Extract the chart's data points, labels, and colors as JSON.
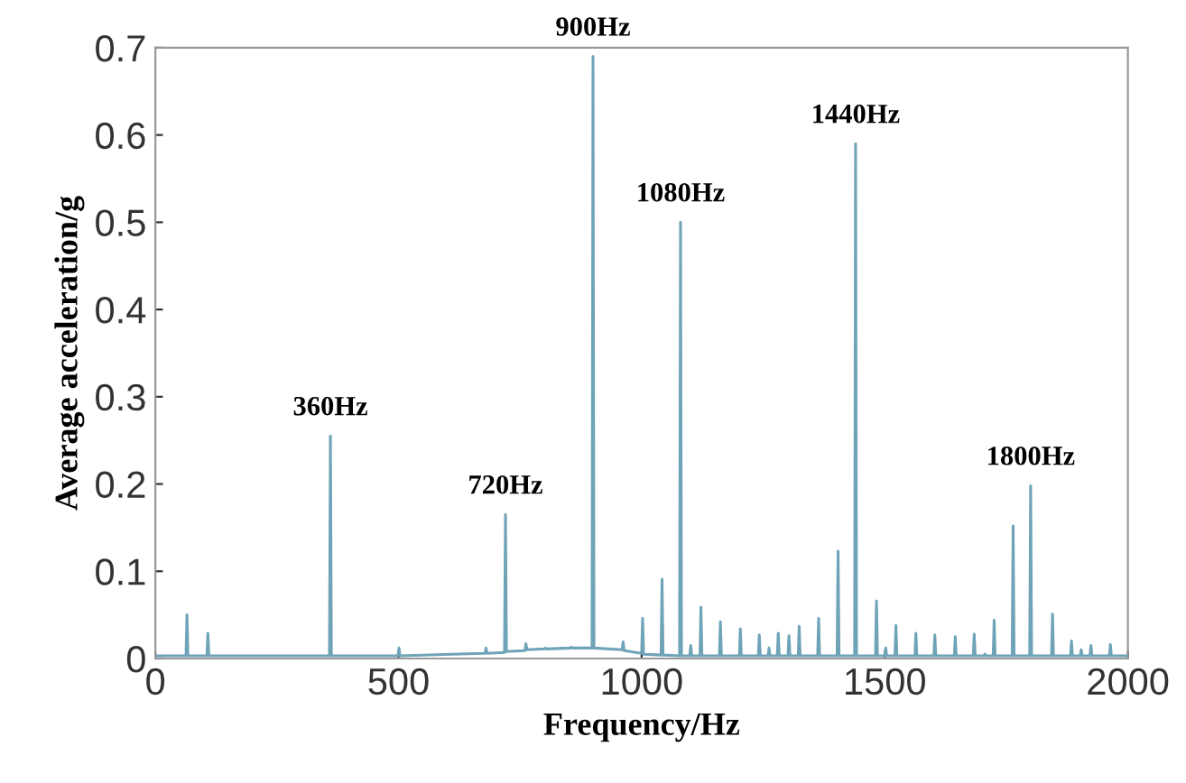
{
  "chart_data": {
    "type": "line",
    "xlabel": "Frequency/Hz",
    "ylabel": "Average acceleration/g",
    "x": [
      0,
      63,
      65,
      67,
      106,
      108,
      110,
      358,
      360,
      362,
      499,
      501,
      503,
      678,
      680,
      682,
      718,
      720,
      722,
      760,
      762,
      764,
      800,
      802,
      804,
      853,
      855,
      857,
      898,
      900,
      902,
      960,
      962,
      964,
      1000,
      1002,
      1004,
      1040,
      1042,
      1044,
      1078,
      1080,
      1082,
      1099,
      1101,
      1103,
      1120,
      1122,
      1124,
      1160,
      1162,
      1164,
      1201,
      1203,
      1205,
      1240,
      1242,
      1244,
      1260,
      1262,
      1264,
      1279,
      1281,
      1283,
      1301,
      1303,
      1305,
      1322,
      1324,
      1326,
      1362,
      1364,
      1366,
      1402,
      1404,
      1406,
      1438,
      1440,
      1442,
      1481,
      1483,
      1485,
      1500,
      1502,
      1504,
      1521,
      1523,
      1525,
      1562,
      1564,
      1566,
      1601,
      1603,
      1605,
      1643,
      1645,
      1647,
      1682,
      1684,
      1686,
      1704,
      1706,
      1708,
      1723,
      1725,
      1727,
      1762,
      1764,
      1766,
      1798,
      1800,
      1802,
      1843,
      1845,
      1847,
      1882,
      1884,
      1886,
      1902,
      1904,
      1906,
      1922,
      1924,
      1926,
      1962,
      1964,
      1966,
      2000
    ],
    "series": [
      {
        "color": "#6fa3b8",
        "values": [
          0.003,
          0.003,
          0.05,
          0.003,
          0.003,
          0.029,
          0.003,
          0.003,
          0.255,
          0.003,
          0.003,
          0.012,
          0.003,
          0.006,
          0.012,
          0.006,
          0.007,
          0.165,
          0.008,
          0.009,
          0.017,
          0.01,
          0.011,
          0.012,
          0.011,
          0.012,
          0.013,
          0.012,
          0.012,
          0.69,
          0.012,
          0.01,
          0.019,
          0.009,
          0.006,
          0.046,
          0.005,
          0.004,
          0.091,
          0.004,
          0.003,
          0.5,
          0.003,
          0.003,
          0.015,
          0.003,
          0.003,
          0.059,
          0.003,
          0.003,
          0.042,
          0.003,
          0.003,
          0.034,
          0.003,
          0.003,
          0.027,
          0.003,
          0.003,
          0.012,
          0.003,
          0.003,
          0.029,
          0.003,
          0.003,
          0.026,
          0.003,
          0.003,
          0.037,
          0.003,
          0.003,
          0.046,
          0.003,
          0.003,
          0.123,
          0.003,
          0.003,
          0.59,
          0.003,
          0.003,
          0.066,
          0.003,
          0.003,
          0.012,
          0.003,
          0.003,
          0.038,
          0.003,
          0.003,
          0.029,
          0.003,
          0.003,
          0.027,
          0.003,
          0.003,
          0.025,
          0.003,
          0.003,
          0.028,
          0.003,
          0.003,
          0.005,
          0.003,
          0.003,
          0.044,
          0.003,
          0.003,
          0.152,
          0.003,
          0.003,
          0.198,
          0.003,
          0.003,
          0.051,
          0.003,
          0.003,
          0.02,
          0.003,
          0.003,
          0.01,
          0.003,
          0.003,
          0.015,
          0.003,
          0.003,
          0.016,
          0.003,
          0.003
        ]
      }
    ],
    "annotations": [
      {
        "text": "360Hz",
        "x": 360,
        "y": 0.255
      },
      {
        "text": "720Hz",
        "x": 720,
        "y": 0.165
      },
      {
        "text": "900Hz",
        "x": 900,
        "y": 0.69
      },
      {
        "text": "1080Hz",
        "x": 1080,
        "y": 0.5
      },
      {
        "text": "1440Hz",
        "x": 1440,
        "y": 0.59
      },
      {
        "text": "1800Hz",
        "x": 1800,
        "y": 0.198
      }
    ],
    "xlim": [
      0,
      2000
    ],
    "xticks": [
      0,
      500,
      1000,
      1500,
      2000
    ],
    "ylim": [
      0,
      0.7
    ],
    "yticks": [
      0,
      0.1,
      0.2,
      0.3,
      0.4,
      0.5,
      0.6,
      0.7
    ],
    "grid": false,
    "marker": "none",
    "line_style": "solid"
  }
}
